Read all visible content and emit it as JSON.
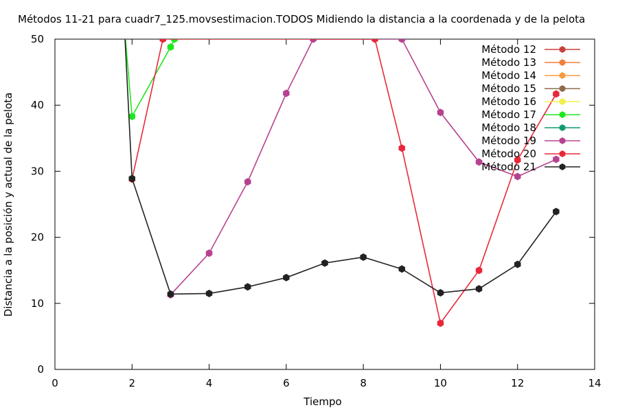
{
  "chart_data": {
    "type": "line",
    "title": "Métodos 11-21 para cuadr7_125.movsestimacion.TODOS Midiendo la distancia a la coordenada y de la pelota",
    "xlabel": "Tiempo",
    "ylabel": "Distancia a la posición y actual de la pelota",
    "xlim": [
      0,
      14
    ],
    "ylim": [
      0,
      50
    ],
    "xticks": [
      0,
      2,
      4,
      6,
      8,
      10,
      12,
      14
    ],
    "yticks": [
      0,
      10,
      20,
      30,
      40,
      50
    ],
    "grid": false,
    "legend_position": "top-right",
    "series": [
      {
        "name": "Método 12",
        "color": "#c8413a",
        "points": []
      },
      {
        "name": "Método 13",
        "color": "#f07f3c",
        "points": []
      },
      {
        "name": "Método 14",
        "color": "#f79a3e",
        "points": []
      },
      {
        "name": "Método 15",
        "color": "#8c6c4c",
        "points": []
      },
      {
        "name": "Método 16",
        "color": "#f0f04a",
        "points": []
      },
      {
        "name": "Método 17",
        "color": "#1ee61e",
        "points": [
          [
            1.8,
            52
          ],
          [
            2,
            38.3
          ],
          [
            3,
            48.8
          ],
          [
            3.1,
            50
          ]
        ]
      },
      {
        "name": "Método 18",
        "color": "#109a72",
        "points": []
      },
      {
        "name": "Método 19",
        "color": "#b6428f",
        "points": [
          [
            3,
            11.3
          ],
          [
            4,
            17.6
          ],
          [
            5,
            28.4
          ],
          [
            6,
            41.8
          ],
          [
            6.7,
            50
          ],
          [
            9,
            50
          ],
          [
            10,
            38.9
          ],
          [
            11,
            31.4
          ],
          [
            12,
            29.2
          ],
          [
            13,
            31.8
          ]
        ]
      },
      {
        "name": "Método 20",
        "color": "#e8283a",
        "points": [
          [
            2,
            28.8
          ],
          [
            2.8,
            50
          ],
          [
            8.3,
            50
          ],
          [
            9,
            33.5
          ],
          [
            10,
            7
          ],
          [
            11,
            15
          ],
          [
            12,
            31.7
          ],
          [
            13,
            41.7
          ]
        ]
      },
      {
        "name": "Método 21",
        "color": "#222222",
        "points": [
          [
            1.8,
            52
          ],
          [
            2,
            28.9
          ],
          [
            3,
            11.4
          ],
          [
            4,
            11.5
          ],
          [
            5,
            12.5
          ],
          [
            6,
            13.9
          ],
          [
            7,
            16.1
          ],
          [
            8,
            17
          ],
          [
            9,
            15.2
          ],
          [
            10,
            11.6
          ],
          [
            11,
            12.2
          ],
          [
            12,
            15.9
          ],
          [
            13,
            23.9
          ]
        ]
      }
    ]
  }
}
